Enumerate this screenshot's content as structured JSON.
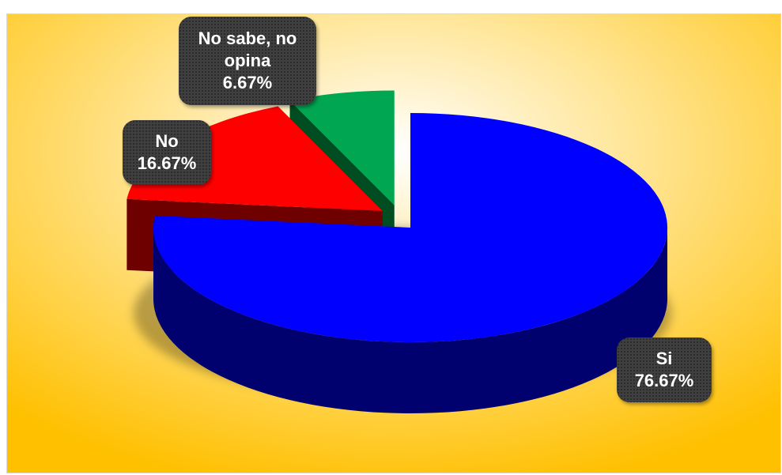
{
  "chart_data": {
    "type": "pie",
    "title": "",
    "slices": [
      {
        "label": "Si",
        "value": 76.67,
        "value_label": "76.67%",
        "color": "#0000ff",
        "dark": "#00006e"
      },
      {
        "label": "No",
        "value": 16.67,
        "value_label": "16.67%",
        "color": "#ff0000",
        "dark": "#6e0000"
      },
      {
        "label": "No sabe, no opina",
        "value": 6.67,
        "value_label": "6.67%",
        "color": "#00a651",
        "dark": "#004d22"
      }
    ],
    "legend": "none",
    "background": {
      "center": "#ffffff",
      "edge": "#ffc000"
    }
  }
}
